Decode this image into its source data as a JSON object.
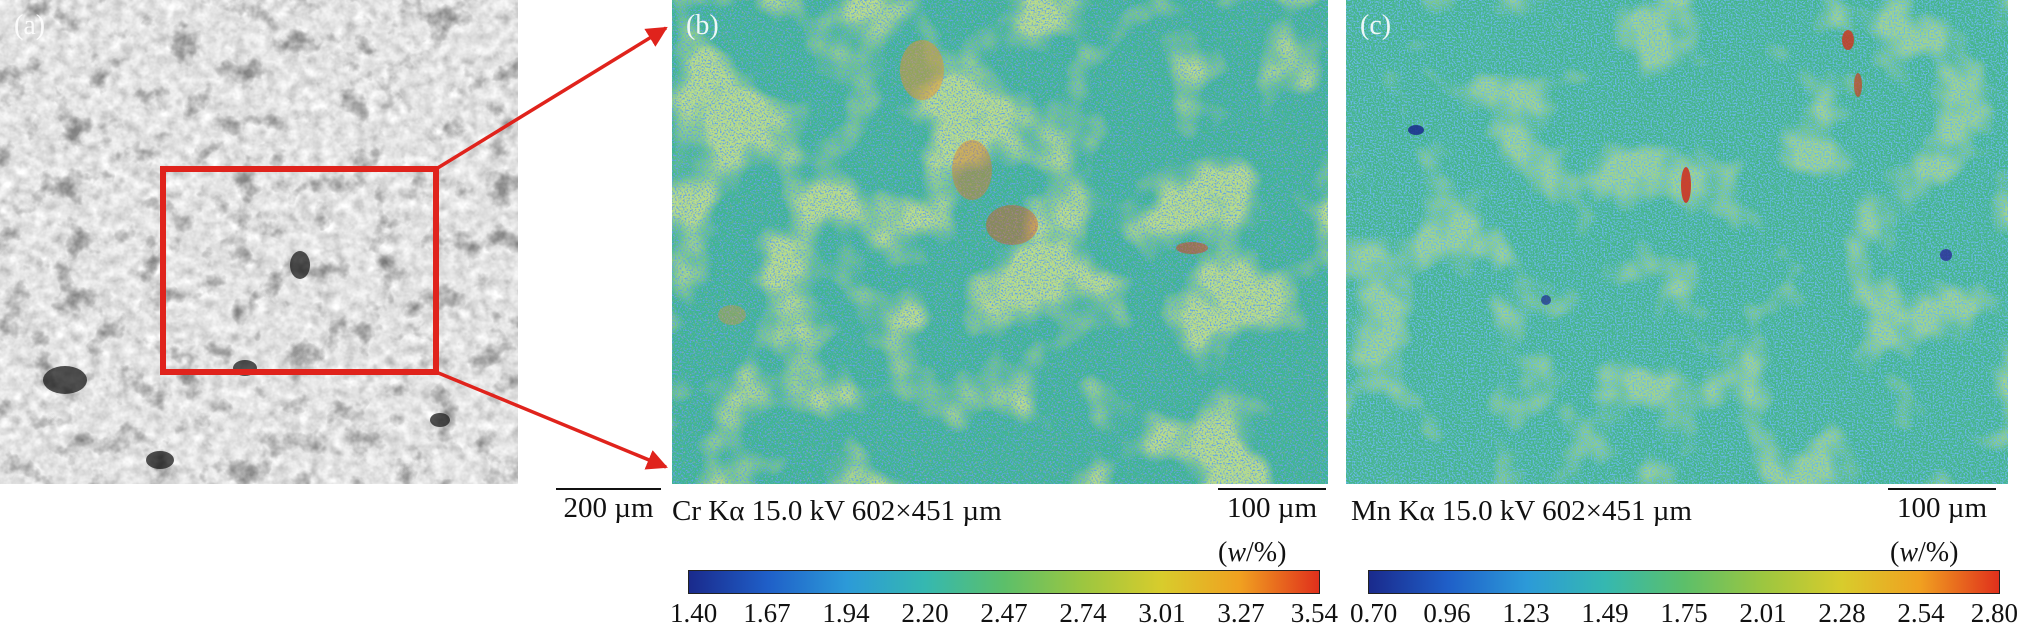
{
  "panel_a": {
    "label": "(a)",
    "scale_text": "200 µm"
  },
  "panel_b": {
    "label": "(b)",
    "caption": "Cr Kα 15.0 kV 602×451 µm",
    "scale_text": "100 µm",
    "unit_text": "(w/%)",
    "ticks": [
      "1.40",
      "1.67",
      "1.94",
      "2.20",
      "2.47",
      "2.74",
      "3.01",
      "3.27",
      "3.54"
    ]
  },
  "panel_c": {
    "label": "(c)",
    "caption": "Mn Kα 15.0 kV 602×451 µm",
    "scale_text": "100 µm",
    "unit_text": "(w/%)",
    "ticks": [
      "0.70",
      "0.96",
      "1.23",
      "1.49",
      "1.75",
      "2.01",
      "2.28",
      "2.54",
      "2.80"
    ]
  },
  "colors": {
    "highlight": "#e0231c",
    "colormap": [
      "#1a2a8c",
      "#1f5fc8",
      "#2c9ad8",
      "#35b8b0",
      "#5cbf6a",
      "#9cc640",
      "#d8cc2c",
      "#f0a020",
      "#e0301c"
    ]
  }
}
